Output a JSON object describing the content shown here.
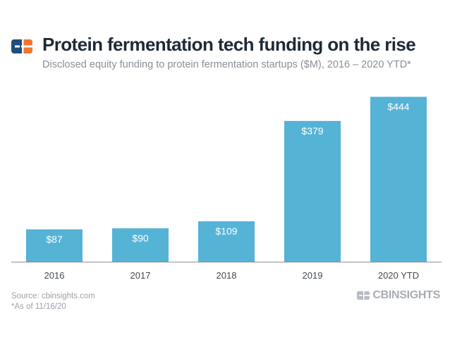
{
  "header": {
    "title": "Protein fermentation tech funding on the rise",
    "subtitle": "Disclosed equity funding to protein fermentation startups ($M), 2016 – 2020 YTD*"
  },
  "footer": {
    "source": "Source: cbinsights.com",
    "note": "*As of 11/16/20",
    "brand": "CBINSIGHTS"
  },
  "colors": {
    "bar": "#55b3d6",
    "title": "#1f2a36",
    "logo_blue": "#1f4e79",
    "logo_orange": "#f2762e"
  },
  "icons": {
    "logo": "cb-insights-logo-icon"
  },
  "chart_data": {
    "type": "bar",
    "categories": [
      "2016",
      "2017",
      "2018",
      "2019",
      "2020 YTD"
    ],
    "values": [
      87,
      90,
      109,
      379,
      444
    ],
    "data_labels": [
      "$87",
      "$90",
      "$109",
      "$379",
      "$444"
    ],
    "title": "Protein fermentation tech funding on the rise",
    "xlabel": "",
    "ylabel": "",
    "ylim": [
      0,
      500
    ],
    "grid": false
  }
}
